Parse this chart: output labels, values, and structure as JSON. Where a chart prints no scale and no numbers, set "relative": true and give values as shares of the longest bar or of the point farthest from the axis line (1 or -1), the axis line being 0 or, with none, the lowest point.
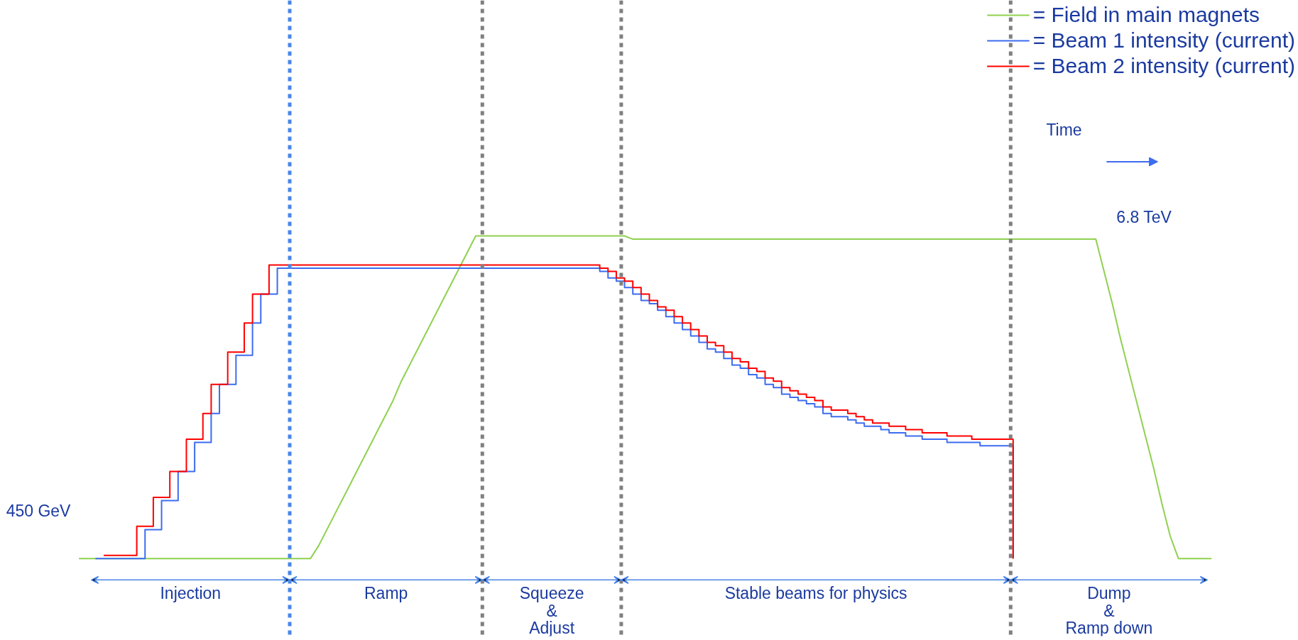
{
  "chart_data": {
    "type": "step",
    "relative": true,
    "categories": [
      null,
      null,
      null,
      null,
      null,
      null,
      null,
      null,
      null,
      null,
      null,
      null,
      null,
      null,
      null,
      null,
      null,
      null,
      null,
      null,
      null,
      null,
      null,
      null,
      null,
      null,
      null,
      null,
      null,
      null,
      null,
      null,
      null,
      null,
      null,
      null,
      null,
      null,
      null,
      null,
      null,
      null,
      null,
      null,
      null,
      null,
      null,
      null,
      null,
      null,
      null,
      null,
      null,
      null,
      null,
      null,
      null,
      null,
      null,
      null,
      null,
      null,
      null,
      null,
      null,
      null,
      null,
      null,
      null,
      null,
      null,
      null,
      null,
      null,
      null,
      null,
      null,
      null,
      null,
      null,
      null,
      null,
      null,
      null,
      null,
      null,
      null,
      null,
      null,
      null,
      null,
      null,
      null,
      null,
      null,
      null,
      null,
      null,
      null,
      null,
      null,
      null,
      null,
      null,
      null,
      null,
      null,
      null,
      null,
      null,
      null,
      null,
      null,
      null,
      null,
      null,
      null,
      null,
      null,
      null,
      null,
      null,
      null,
      null,
      null,
      null,
      null,
      null,
      null,
      null,
      null,
      null,
      null,
      null,
      null,
      null,
      null,
      null,
      null,
      null,
      null,
      null,
      null,
      null,
      null,
      null,
      null,
      null,
      null,
      null,
      null,
      null,
      null,
      null,
      null,
      null,
      null
    ],
    "grid": false,
    "legend": "top right",
    "line_style": "solid",
    "series": [
      {
        "name": "= Field in main magnets",
        "type": "line",
        "color": "#8fd14f",
        "values": [
          null,
          null,
          null,
          null,
          null,
          null,
          null,
          null,
          null,
          0,
          0,
          0,
          0,
          0,
          0,
          0,
          0,
          0,
          0,
          0,
          0,
          0,
          0,
          0,
          0,
          0,
          0,
          0,
          0,
          0,
          0,
          0,
          0,
          0,
          0,
          0,
          0,
          0,
          0.04,
          0.09,
          0.14,
          0.19,
          0.24,
          0.29,
          0.34,
          0.39,
          0.44,
          0.49,
          0.55,
          0.6,
          0.65,
          0.7,
          0.75,
          0.8,
          0.85,
          0.9,
          0.95,
          1.0,
          1.0,
          1.0,
          1.0,
          1.0,
          1.0,
          1.0,
          1.0,
          1.0,
          1.0,
          1.0,
          1.0,
          1.0,
          1.0,
          1.0,
          1.0,
          1.0,
          1.0,
          1.0,
          0.99,
          0.99,
          0.99,
          0.99,
          0.99,
          0.99,
          0.99,
          0.99,
          0.99,
          0.99,
          0.99,
          0.99,
          0.99,
          0.99,
          0.99,
          0.99,
          0.99,
          0.99,
          0.99,
          0.99,
          0.99,
          0.99,
          0.99,
          0.99,
          0.99,
          0.99,
          0.99,
          0.99,
          0.99,
          0.99,
          0.99,
          0.99,
          0.99,
          0.99,
          0.99,
          0.99,
          0.99,
          0.99,
          0.99,
          0.99,
          0.99,
          0.99,
          0.99,
          0.99,
          0.99,
          0.99,
          0.99,
          0.99,
          0.99,
          0.99,
          0.99,
          0.99,
          0.99,
          0.99,
          0.99,
          0.99,
          0.99,
          0.89,
          0.79,
          0.68,
          0.58,
          0.48,
          0.38,
          0.28,
          0.17,
          0.07,
          0,
          0,
          0,
          0,
          0,
          null,
          null,
          null,
          null,
          null,
          null,
          null,
          null,
          null,
          null
        ]
      },
      {
        "name": "= Beam 1 intensity (current)",
        "color": "#3c6cf0",
        "values": [
          null,
          null,
          null,
          null,
          null,
          null,
          null,
          null,
          null,
          null,
          null,
          0,
          0,
          0,
          0,
          0,
          0,
          0.09,
          0.09,
          0.18,
          0.18,
          0.27,
          0.27,
          0.36,
          0.36,
          0.45,
          0.54,
          0.54,
          0.63,
          0.63,
          0.73,
          0.82,
          0.82,
          0.9,
          0.9,
          0.9,
          0.9,
          0.9,
          0.9,
          0.9,
          0.9,
          0.9,
          0.9,
          0.9,
          0.9,
          0.9,
          0.9,
          0.9,
          0.9,
          0.9,
          0.9,
          0.9,
          0.9,
          0.9,
          0.9,
          0.9,
          0.9,
          0.9,
          0.9,
          0.9,
          0.9,
          0.9,
          0.9,
          0.9,
          0.9,
          0.9,
          0.9,
          0.9,
          0.9,
          0.9,
          0.9,
          0.9,
          0.89,
          0.87,
          0.86,
          0.84,
          0.82,
          0.8,
          0.79,
          0.77,
          0.75,
          0.73,
          0.71,
          0.69,
          0.67,
          0.65,
          0.64,
          0.62,
          0.6,
          0.59,
          0.57,
          0.56,
          0.54,
          0.53,
          0.51,
          0.5,
          0.49,
          0.48,
          0.47,
          0.45,
          0.44,
          0.44,
          0.43,
          0.42,
          0.41,
          0.41,
          0.4,
          0.39,
          0.39,
          0.38,
          0.38,
          0.37,
          0.37,
          0.37,
          0.36,
          0.36,
          0.36,
          0.36,
          0.35,
          0.35,
          0.35,
          0.35,
          0,
          null,
          null,
          null,
          null,
          null,
          null,
          null,
          null,
          null,
          null,
          null,
          null,
          null,
          null,
          null,
          null,
          null,
          null,
          null,
          null,
          null,
          null,
          null,
          null,
          null,
          null,
          null,
          null,
          null,
          null,
          null,
          null,
          null,
          null
        ]
      },
      {
        "name": "= Beam 2 intensity (current)",
        "color": "#ff0000",
        "values": [
          null,
          null,
          null,
          null,
          null,
          null,
          null,
          null,
          null,
          null,
          null,
          null,
          0.01,
          0.01,
          0.01,
          0.01,
          0.1,
          0.1,
          0.19,
          0.19,
          0.27,
          0.27,
          0.37,
          0.37,
          0.45,
          0.54,
          0.54,
          0.64,
          0.64,
          0.73,
          0.82,
          0.82,
          0.91,
          0.91,
          0.91,
          0.91,
          0.91,
          0.91,
          0.91,
          0.91,
          0.91,
          0.91,
          0.91,
          0.91,
          0.91,
          0.91,
          0.91,
          0.91,
          0.91,
          0.91,
          0.91,
          0.91,
          0.91,
          0.91,
          0.91,
          0.91,
          0.91,
          0.91,
          0.91,
          0.91,
          0.91,
          0.91,
          0.91,
          0.91,
          0.91,
          0.91,
          0.91,
          0.91,
          0.91,
          0.91,
          0.91,
          0.91,
          0.9,
          0.89,
          0.87,
          0.86,
          0.84,
          0.82,
          0.8,
          0.78,
          0.77,
          0.75,
          0.73,
          0.71,
          0.69,
          0.67,
          0.66,
          0.64,
          0.62,
          0.61,
          0.59,
          0.58,
          0.56,
          0.55,
          0.53,
          0.52,
          0.51,
          0.5,
          0.49,
          0.47,
          0.46,
          0.46,
          0.45,
          0.44,
          0.43,
          0.42,
          0.42,
          0.41,
          0.41,
          0.4,
          0.4,
          0.39,
          0.39,
          0.39,
          0.38,
          0.38,
          0.38,
          0.37,
          0.37,
          0.37,
          0.37,
          0.37,
          0,
          null,
          null,
          null,
          null,
          null,
          null,
          null,
          null,
          null,
          null,
          null,
          null,
          null,
          null,
          null,
          null,
          null,
          null,
          null,
          null,
          null,
          null,
          null,
          null,
          null,
          null,
          null,
          null,
          null,
          null,
          null,
          null,
          null,
          null
        ]
      }
    ],
    "annotations": [
      "450 GeV",
      "6.8 TeV",
      "Time",
      "Injection",
      "Ramp",
      "Squeeze\n&\nAdjust",
      "Stable beams for physics",
      "Dump\n&\nRamp down"
    ]
  }
}
